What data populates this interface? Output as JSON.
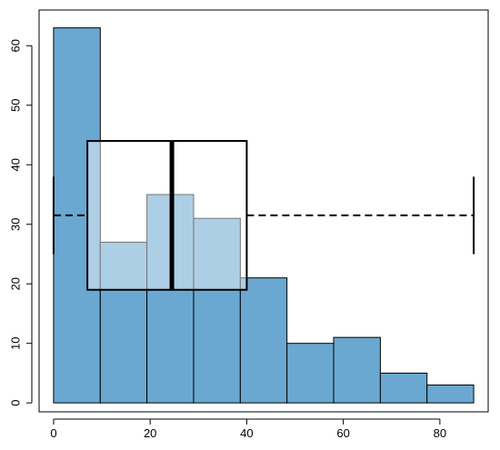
{
  "chart_data": {
    "type": "histogram",
    "title": "",
    "xlabel": "",
    "ylabel": "",
    "xlim": [
      -3,
      90
    ],
    "ylim": [
      -1.5,
      66
    ],
    "x_ticks": [
      0,
      20,
      40,
      60,
      80
    ],
    "y_ticks": [
      0,
      10,
      20,
      30,
      40,
      50,
      60
    ],
    "x_tick_labels": [
      "0",
      "20",
      "40",
      "60",
      "80"
    ],
    "y_tick_labels": [
      "0",
      "10",
      "20",
      "30",
      "40",
      "50",
      "60"
    ],
    "grid": false,
    "bar_color": "#6aa8d1",
    "bins": [
      {
        "x0": 0,
        "x1": 9.67,
        "count": 63
      },
      {
        "x0": 9.67,
        "x1": 19.33,
        "count": 27
      },
      {
        "x0": 19.33,
        "x1": 29.0,
        "count": 35
      },
      {
        "x0": 29.0,
        "x1": 38.67,
        "count": 31
      },
      {
        "x0": 38.67,
        "x1": 48.33,
        "count": 21
      },
      {
        "x0": 48.33,
        "x1": 58.0,
        "count": 10
      },
      {
        "x0": 58.0,
        "x1": 67.67,
        "count": 11
      },
      {
        "x0": 67.67,
        "x1": 77.33,
        "count": 5
      },
      {
        "x0": 77.33,
        "x1": 87.0,
        "count": 3
      }
    ],
    "boxplot": {
      "orientation": "horizontal",
      "min": 0,
      "q1": 7,
      "median": 24.5,
      "q3": 40,
      "max": 87,
      "y_center": 31.5,
      "y_bottom": 19,
      "y_top": 44,
      "whisker_cap_bottom": 25,
      "whisker_cap_top": 38,
      "whisker_style": "dashed",
      "box_fill": "rgba(255,255,255,0.45)",
      "color": "#000000"
    }
  }
}
